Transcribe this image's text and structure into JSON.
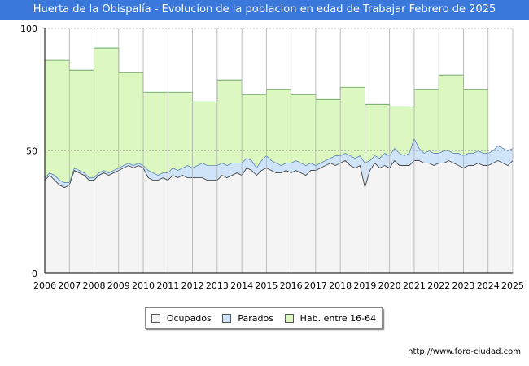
{
  "chart_data": {
    "type": "area",
    "title": "Huerta de la Obispalía - Evolucion de la poblacion en edad de Trabajar Febrero de 2025",
    "xlabel": "",
    "ylabel": "",
    "xlim": [
      2006,
      2025
    ],
    "ylim": [
      0,
      100
    ],
    "x_ticks": [
      "2006",
      "2007",
      "2008",
      "2009",
      "2010",
      "2011",
      "2012",
      "2013",
      "2014",
      "2015",
      "2016",
      "2017",
      "2018",
      "2019",
      "2020",
      "2021",
      "2022",
      "2023",
      "2024",
      "2025"
    ],
    "y_ticks": [
      "0",
      "50",
      "100"
    ],
    "grid": true,
    "legend_position": "bottom",
    "series": [
      {
        "name": "Hab. entre 16-64",
        "color": "#ddf7c0",
        "line_color": "#5a9a5a",
        "steps": [
          {
            "year": 2006,
            "value": 87
          },
          {
            "year": 2007,
            "value": 83
          },
          {
            "year": 2008,
            "value": 92
          },
          {
            "year": 2009,
            "value": 82
          },
          {
            "year": 2010,
            "value": 74
          },
          {
            "year": 2011,
            "value": 74
          },
          {
            "year": 2012,
            "value": 70
          },
          {
            "year": 2013,
            "value": 79
          },
          {
            "year": 2014,
            "value": 73
          },
          {
            "year": 2015,
            "value": 75
          },
          {
            "year": 2016,
            "value": 73
          },
          {
            "year": 2017,
            "value": 71
          },
          {
            "year": 2018,
            "value": 76
          },
          {
            "year": 2019,
            "value": 69
          },
          {
            "year": 2020,
            "value": 68
          },
          {
            "year": 2021,
            "value": 75
          },
          {
            "year": 2022,
            "value": 81
          },
          {
            "year": 2023,
            "value": 75
          }
        ]
      },
      {
        "name": "Parados",
        "color": "#cfe4f8",
        "line_color": "#4a78b0",
        "x": [
          2006,
          2006.2,
          2006.4,
          2006.6,
          2006.8,
          2007,
          2007.2,
          2007.4,
          2007.6,
          2007.8,
          2008,
          2008.2,
          2008.4,
          2008.6,
          2008.8,
          2009,
          2009.2,
          2009.4,
          2009.6,
          2009.8,
          2010,
          2010.2,
          2010.4,
          2010.6,
          2010.8,
          2011,
          2011.2,
          2011.4,
          2011.6,
          2011.8,
          2012,
          2012.2,
          2012.4,
          2012.6,
          2012.8,
          2013,
          2013.2,
          2013.4,
          2013.6,
          2013.8,
          2014,
          2014.2,
          2014.4,
          2014.6,
          2014.8,
          2015,
          2015.2,
          2015.4,
          2015.6,
          2015.8,
          2016,
          2016.2,
          2016.4,
          2016.6,
          2016.8,
          2017,
          2017.2,
          2017.4,
          2017.6,
          2017.8,
          2018,
          2018.2,
          2018.4,
          2018.6,
          2018.8,
          2019,
          2019.2,
          2019.4,
          2019.6,
          2019.8,
          2020,
          2020.2,
          2020.4,
          2020.6,
          2020.8,
          2021,
          2021.2,
          2021.4,
          2021.6,
          2021.8,
          2022,
          2022.2,
          2022.4,
          2022.6,
          2022.8,
          2023,
          2023.2,
          2023.4,
          2023.6,
          2023.8,
          2024,
          2024.2,
          2024.4,
          2024.6,
          2024.8,
          2025
        ],
        "values": [
          39,
          41,
          40,
          38,
          37,
          37,
          43,
          42,
          41,
          39,
          39,
          41,
          42,
          41,
          42,
          43,
          44,
          45,
          44,
          45,
          44,
          42,
          41,
          40,
          41,
          41,
          43,
          42,
          43,
          44,
          43,
          44,
          45,
          44,
          44,
          44,
          45,
          44,
          45,
          45,
          45,
          47,
          46,
          43,
          46,
          48,
          46,
          45,
          44,
          45,
          45,
          46,
          45,
          44,
          45,
          44,
          45,
          46,
          47,
          48,
          48,
          49,
          48,
          47,
          48,
          45,
          46,
          48,
          47,
          49,
          48,
          51,
          49,
          48,
          49,
          55,
          51,
          49,
          50,
          49,
          49,
          50,
          50,
          49,
          49,
          48,
          49,
          49,
          50,
          49,
          49,
          50,
          52,
          51,
          50,
          51
        ]
      },
      {
        "name": "Ocupados",
        "color": "#f4f4f4",
        "line_color": "#333333",
        "x": [
          2006,
          2006.2,
          2006.4,
          2006.6,
          2006.8,
          2007,
          2007.2,
          2007.4,
          2007.6,
          2007.8,
          2008,
          2008.2,
          2008.4,
          2008.6,
          2008.8,
          2009,
          2009.2,
          2009.4,
          2009.6,
          2009.8,
          2010,
          2010.2,
          2010.4,
          2010.6,
          2010.8,
          2011,
          2011.2,
          2011.4,
          2011.6,
          2011.8,
          2012,
          2012.2,
          2012.4,
          2012.6,
          2012.8,
          2013,
          2013.2,
          2013.4,
          2013.6,
          2013.8,
          2014,
          2014.2,
          2014.4,
          2014.6,
          2014.8,
          2015,
          2015.2,
          2015.4,
          2015.6,
          2015.8,
          2016,
          2016.2,
          2016.4,
          2016.6,
          2016.8,
          2017,
          2017.2,
          2017.4,
          2017.6,
          2017.8,
          2018,
          2018.2,
          2018.4,
          2018.6,
          2018.8,
          2019,
          2019.2,
          2019.4,
          2019.6,
          2019.8,
          2020,
          2020.2,
          2020.4,
          2020.6,
          2020.8,
          2021,
          2021.2,
          2021.4,
          2021.6,
          2021.8,
          2022,
          2022.2,
          2022.4,
          2022.6,
          2022.8,
          2023,
          2023.2,
          2023.4,
          2023.6,
          2023.8,
          2024,
          2024.2,
          2024.4,
          2024.6,
          2024.8,
          2025
        ],
        "values": [
          38,
          40,
          38,
          36,
          35,
          36,
          42,
          41,
          40,
          38,
          38,
          40,
          41,
          40,
          41,
          42,
          43,
          44,
          43,
          44,
          43,
          39,
          38,
          38,
          39,
          38,
          40,
          39,
          40,
          39,
          39,
          39,
          39,
          38,
          38,
          38,
          40,
          39,
          40,
          41,
          40,
          43,
          42,
          40,
          42,
          43,
          42,
          41,
          41,
          42,
          41,
          42,
          41,
          40,
          42,
          42,
          43,
          44,
          45,
          44,
          45,
          46,
          44,
          43,
          44,
          35,
          42,
          45,
          43,
          44,
          43,
          46,
          44,
          44,
          44,
          46,
          46,
          45,
          45,
          44,
          45,
          45,
          46,
          45,
          44,
          43,
          44,
          44,
          45,
          44,
          44,
          45,
          46,
          45,
          44,
          46
        ]
      }
    ]
  },
  "legend": {
    "items": [
      {
        "label": "Ocupados",
        "color": "#f4f4f4"
      },
      {
        "label": "Parados",
        "color": "#cfe4f8"
      },
      {
        "label": "Hab. entre 16-64",
        "color": "#ddf7c0"
      }
    ]
  },
  "source": "http://www.foro-ciudad.com"
}
